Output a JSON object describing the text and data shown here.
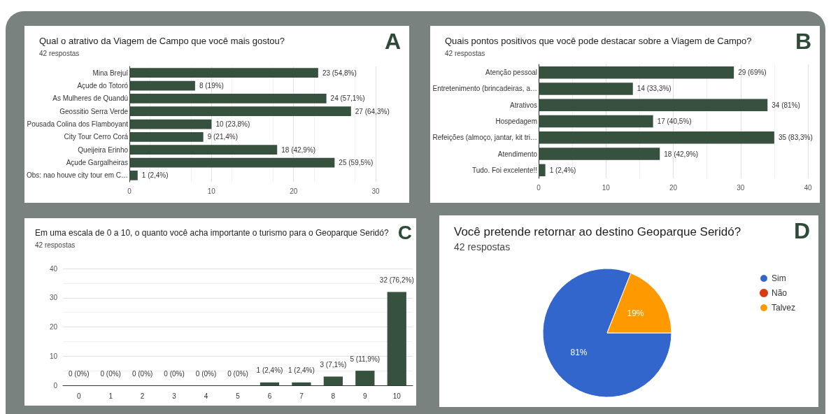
{
  "chart_data": [
    {
      "type": "bar",
      "title": "Qual o atrativo da Viagem de Campo que você mais gostou?",
      "subtitle": "42 respostas",
      "annotations": [
        "A"
      ],
      "orientation": "horizontal",
      "categories": [
        "Mina Brejuí",
        "Açude do Totoró",
        "As Mulheres de Quandú",
        "Geossitio Serra Verde",
        "Pousada Colina dos Flamboyant",
        "City Tour Cerro Corá",
        "Queijeira Erinho",
        "Açude Gargalheiras",
        "Obs: nao houve city tour em C…"
      ],
      "values": [
        23,
        8,
        24,
        27,
        10,
        9,
        18,
        25,
        1
      ],
      "value_labels": [
        "23 (54,8%)",
        "8 (19%)",
        "24 (57,1%)",
        "27 (64,3%)",
        "10 (23,8%)",
        "9 (21,4%)",
        "18 (42,9%)",
        "25 (59,5%)",
        "1 (2,4%)"
      ],
      "color": "#36513d",
      "xlim": [
        0,
        30
      ],
      "xticks": [
        0,
        10,
        20,
        30
      ],
      "grid": "x"
    },
    {
      "type": "bar",
      "title": "Quais pontos positivos que você pode destacar sobre a Viagem de Campo?",
      "subtitle": "42 respostas",
      "annotations": [
        "B"
      ],
      "orientation": "horizontal",
      "categories": [
        "Atenção pessoal",
        "Entretenimento (brincadeiras, a…",
        "Atrativos",
        "Hospedagem",
        "Refeições (almoço, jantar, kit tri…",
        "Atendimento",
        "Tudo. Foi excelente!!"
      ],
      "values": [
        29,
        14,
        34,
        17,
        35,
        18,
        1
      ],
      "value_labels": [
        "29 (69%)",
        "14 (33,3%)",
        "34 (81%)",
        "17 (40,5%)",
        "35 (83,3%)",
        "18 (42,9%)",
        "1 (2,4%)"
      ],
      "color": "#36513d",
      "xlim": [
        0,
        40
      ],
      "xticks": [
        0,
        10,
        20,
        30,
        40
      ],
      "grid": "x"
    },
    {
      "type": "bar",
      "title": "Em uma escala de 0 a 10, o quanto você acha importante o turismo para o Geoparque Seridó?",
      "subtitle": "42 respostas",
      "annotations": [
        "C"
      ],
      "categories": [
        "0",
        "1",
        "2",
        "3",
        "4",
        "5",
        "6",
        "7",
        "8",
        "9",
        "10"
      ],
      "values": [
        0,
        0,
        0,
        0,
        0,
        0,
        1,
        1,
        3,
        5,
        32
      ],
      "value_labels": [
        "0 (0%)",
        "0 (0%)",
        "0 (0%)",
        "0 (0%)",
        "0 (0%)",
        "0 (0%)",
        "1 (2,4%)",
        "1 (2,4%)",
        "3 (7,1%)",
        "5 (11,9%)",
        "32 (76,2%)"
      ],
      "color": "#36513d",
      "ylim": [
        0,
        40
      ],
      "yticks": [
        0,
        10,
        20,
        30,
        40
      ],
      "grid": "y"
    },
    {
      "type": "pie",
      "title": "Você pretende retornar ao destino Geoparque Seridó?",
      "subtitle": "42 respostas",
      "annotations": [
        "D"
      ],
      "categories": [
        "Sim",
        "Não",
        "Talvez"
      ],
      "values": [
        81,
        0,
        19
      ],
      "colors": [
        "#3366cc",
        "#dc3912",
        "#ff9900"
      ],
      "value_labels": [
        "81%",
        null,
        "19%"
      ],
      "legend": "top right"
    }
  ]
}
